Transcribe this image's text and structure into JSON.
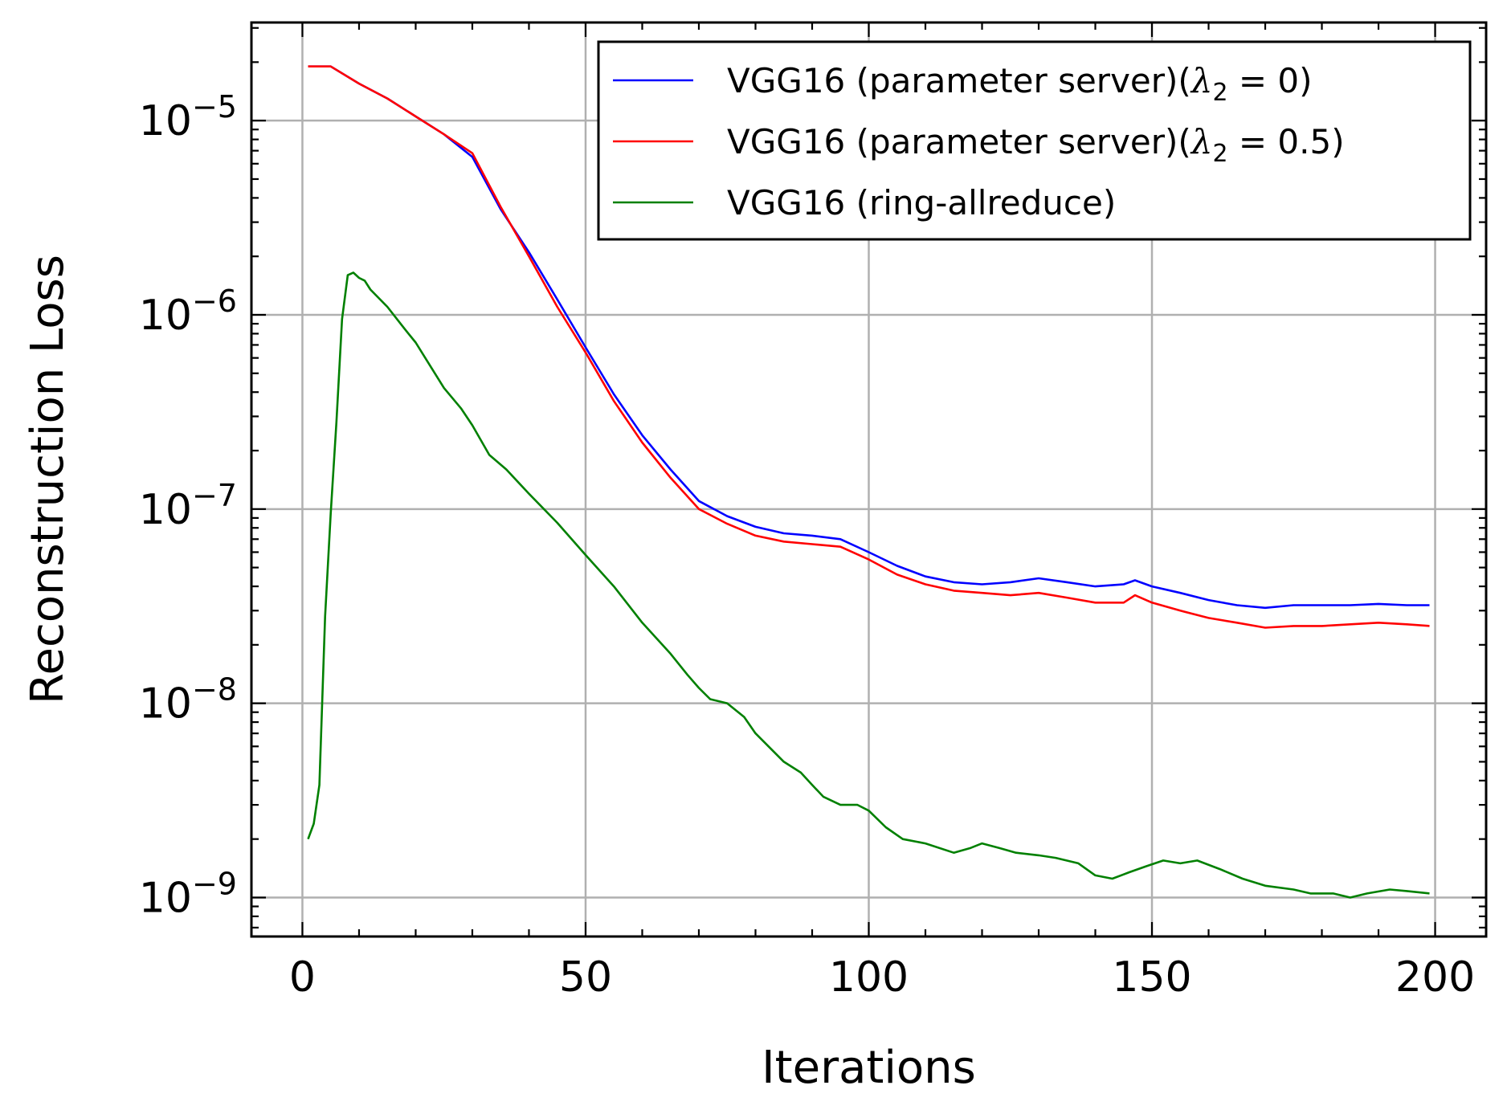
{
  "chart_data": {
    "type": "line",
    "xlabel": "Iterations",
    "ylabel": "Reconstruction Loss",
    "xlim": [
      -9,
      209
    ],
    "ylim": [
      6.3e-10,
      3.2e-05
    ],
    "yscale": "log",
    "xticks": [
      0,
      50,
      100,
      150,
      200
    ],
    "xtick_labels": [
      "0",
      "50",
      "100",
      "150",
      "200"
    ],
    "yticks": [
      1e-09,
      1e-08,
      1e-07,
      1e-06,
      1e-05
    ],
    "ytick_labels": [
      {
        "base": "10",
        "exp": "−9"
      },
      {
        "base": "10",
        "exp": "−8"
      },
      {
        "base": "10",
        "exp": "−7"
      },
      {
        "base": "10",
        "exp": "−6"
      },
      {
        "base": "10",
        "exp": "−5"
      }
    ],
    "grid": true,
    "legend_position": "top-right",
    "series": [
      {
        "name": "VGG16 (parameter server)(λ₂ = 0)",
        "name_parts": {
          "prefix": "VGG16 (parameter server)(",
          "symbol": "λ",
          "sub": "2",
          "suffix": " = 0)"
        },
        "color": "#0000ff",
        "x": [
          1,
          5,
          10,
          15,
          20,
          25,
          30,
          35,
          40,
          45,
          50,
          55,
          60,
          65,
          70,
          75,
          80,
          85,
          90,
          95,
          100,
          105,
          110,
          115,
          120,
          125,
          130,
          135,
          140,
          145,
          147,
          150,
          155,
          160,
          165,
          170,
          175,
          180,
          185,
          190,
          195,
          199
        ],
        "y": [
          1.9e-05,
          1.9e-05,
          1.55e-05,
          1.3e-05,
          1.05e-05,
          8.5e-06,
          6.5e-06,
          3.5e-06,
          2.1e-06,
          1.2e-06,
          6.8e-07,
          3.9e-07,
          2.4e-07,
          1.6e-07,
          1.1e-07,
          9.2e-08,
          8.1e-08,
          7.5e-08,
          7.3e-08,
          7e-08,
          6e-08,
          5.1e-08,
          4.5e-08,
          4.2e-08,
          4.1e-08,
          4.2e-08,
          4.4e-08,
          4.2e-08,
          4e-08,
          4.1e-08,
          4.3e-08,
          4e-08,
          3.7e-08,
          3.4e-08,
          3.2e-08,
          3.1e-08,
          3.2e-08,
          3.2e-08,
          3.2e-08,
          3.25e-08,
          3.2e-08,
          3.2e-08
        ]
      },
      {
        "name": "VGG16 (parameter server)(λ₂ = 0.5)",
        "name_parts": {
          "prefix": "VGG16 (parameter server)(",
          "symbol": "λ",
          "sub": "2",
          "suffix": " = 0.5)"
        },
        "color": "#ff0000",
        "x": [
          1,
          5,
          10,
          15,
          20,
          25,
          30,
          35,
          40,
          45,
          50,
          55,
          60,
          65,
          70,
          75,
          80,
          85,
          90,
          95,
          100,
          105,
          110,
          115,
          120,
          125,
          130,
          135,
          140,
          145,
          147,
          150,
          155,
          160,
          165,
          170,
          175,
          180,
          185,
          190,
          195,
          199
        ],
        "y": [
          1.9e-05,
          1.9e-05,
          1.55e-05,
          1.3e-05,
          1.05e-05,
          8.5e-06,
          6.8e-06,
          3.6e-06,
          2e-06,
          1.1e-06,
          6.4e-07,
          3.6e-07,
          2.2e-07,
          1.45e-07,
          1e-07,
          8.4e-08,
          7.3e-08,
          6.8e-08,
          6.6e-08,
          6.4e-08,
          5.5e-08,
          4.6e-08,
          4.1e-08,
          3.8e-08,
          3.7e-08,
          3.6e-08,
          3.7e-08,
          3.5e-08,
          3.3e-08,
          3.3e-08,
          3.6e-08,
          3.3e-08,
          3e-08,
          2.75e-08,
          2.6e-08,
          2.45e-08,
          2.5e-08,
          2.5e-08,
          2.55e-08,
          2.6e-08,
          2.55e-08,
          2.5e-08
        ]
      },
      {
        "name": "VGG16 (ring-allreduce)",
        "color": "#008000",
        "x": [
          1,
          2,
          3,
          4,
          5,
          6,
          7,
          8,
          9,
          10,
          11,
          12,
          15,
          18,
          20,
          22,
          25,
          28,
          30,
          33,
          36,
          40,
          45,
          50,
          55,
          60,
          65,
          68,
          70,
          72,
          75,
          78,
          80,
          85,
          88,
          90,
          92,
          95,
          98,
          100,
          103,
          106,
          110,
          115,
          118,
          120,
          123,
          126,
          130,
          133,
          137,
          140,
          143,
          146,
          149,
          152,
          155,
          158,
          162,
          166,
          170,
          175,
          178,
          182,
          185,
          188,
          192,
          195,
          199
        ],
        "y": [
          2e-09,
          2.4e-09,
          3.8e-09,
          2.8e-08,
          9.5e-08,
          2.8e-07,
          9.5e-07,
          1.6e-06,
          1.65e-06,
          1.55e-06,
          1.5e-06,
          1.35e-06,
          1.1e-06,
          8.5e-07,
          7.2e-07,
          5.8e-07,
          4.2e-07,
          3.3e-07,
          2.7e-07,
          1.9e-07,
          1.6e-07,
          1.2e-07,
          8.5e-08,
          5.8e-08,
          4e-08,
          2.6e-08,
          1.8e-08,
          1.4e-08,
          1.2e-08,
          1.05e-08,
          1e-08,
          8.5e-09,
          7e-09,
          5e-09,
          4.4e-09,
          3.8e-09,
          3.3e-09,
          3e-09,
          3e-09,
          2.8e-09,
          2.3e-09,
          2e-09,
          1.9e-09,
          1.7e-09,
          1.8e-09,
          1.9e-09,
          1.8e-09,
          1.7e-09,
          1.65e-09,
          1.6e-09,
          1.5e-09,
          1.3e-09,
          1.25e-09,
          1.35e-09,
          1.45e-09,
          1.55e-09,
          1.5e-09,
          1.55e-09,
          1.4e-09,
          1.25e-09,
          1.15e-09,
          1.1e-09,
          1.05e-09,
          1.05e-09,
          1e-09,
          1.05e-09,
          1.1e-09,
          1.08e-09,
          1.05e-09
        ]
      }
    ]
  }
}
